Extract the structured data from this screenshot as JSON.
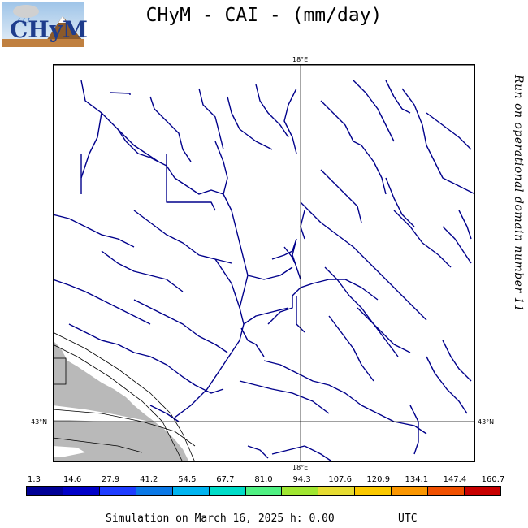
{
  "title": "CHyM - CAI - (mm/day)",
  "side_note": "Run on operational domain number 11",
  "logo_text": "CHyM",
  "map": {
    "lon_label_top": "18°E",
    "lon_label_bottom": "18°E",
    "lat_label_left": "43°N",
    "lat_label_right": "43°N"
  },
  "colorbar": {
    "labels": [
      "1.3",
      "14.6",
      "27.9",
      "41.2",
      "54.5",
      "67.7",
      "81.0",
      "94.3",
      "107.6",
      "120.9",
      "134.1",
      "147.4",
      "160.7"
    ],
    "colors": [
      "#000096",
      "#0000c8",
      "#1e3cff",
      "#0a78e6",
      "#00b4f0",
      "#00dcc8",
      "#50f082",
      "#a0e632",
      "#e6dc32",
      "#fac800",
      "#fa9600",
      "#f05000",
      "#c80000"
    ]
  },
  "footer": {
    "text": "Simulation on March 16, 2025 h: 0.00",
    "timezone": "UTC"
  }
}
